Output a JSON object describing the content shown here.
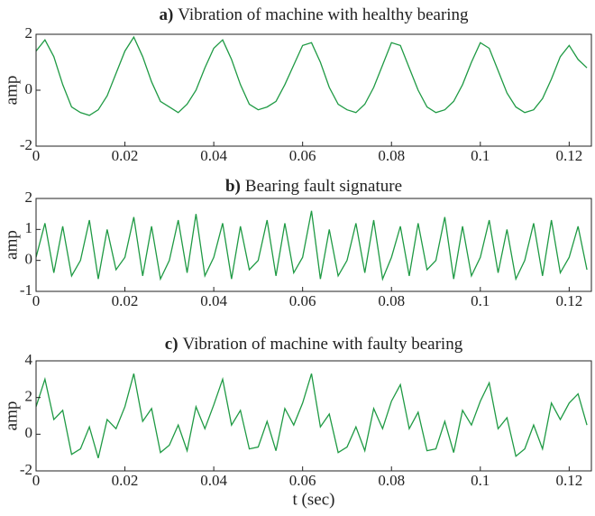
{
  "chart_data": [
    {
      "type": "line",
      "panel_label": "a)",
      "title": "Vibration of machine with healthy bearing",
      "ylabel": "amp",
      "color": "#1f9a44",
      "x": [
        0,
        0.002,
        0.004,
        0.006,
        0.008,
        0.01,
        0.012,
        0.014,
        0.016,
        0.018,
        0.02,
        0.022,
        0.024,
        0.026,
        0.028,
        0.03,
        0.032,
        0.034,
        0.036,
        0.038,
        0.04,
        0.042,
        0.044,
        0.046,
        0.048,
        0.05,
        0.052,
        0.054,
        0.056,
        0.058,
        0.06,
        0.062,
        0.064,
        0.066,
        0.068,
        0.07,
        0.072,
        0.074,
        0.076,
        0.078,
        0.08,
        0.082,
        0.084,
        0.086,
        0.088,
        0.09,
        0.092,
        0.094,
        0.096,
        0.098,
        0.1,
        0.102,
        0.104,
        0.106,
        0.108,
        0.11,
        0.112,
        0.114,
        0.116,
        0.118,
        0.12,
        0.122,
        0.124
      ],
      "values": [
        1.4,
        1.8,
        1.2,
        0.2,
        -0.6,
        -0.8,
        -0.9,
        -0.7,
        -0.2,
        0.6,
        1.4,
        1.9,
        1.2,
        0.3,
        -0.4,
        -0.6,
        -0.8,
        -0.5,
        0.0,
        0.8,
        1.5,
        1.8,
        1.1,
        0.2,
        -0.5,
        -0.7,
        -0.6,
        -0.4,
        0.2,
        0.9,
        1.6,
        1.7,
        1.0,
        0.1,
        -0.5,
        -0.7,
        -0.8,
        -0.5,
        0.1,
        0.9,
        1.7,
        1.6,
        0.8,
        0.0,
        -0.6,
        -0.8,
        -0.7,
        -0.4,
        0.2,
        1.0,
        1.7,
        1.5,
        0.7,
        -0.1,
        -0.6,
        -0.8,
        -0.7,
        -0.3,
        0.4,
        1.2,
        1.6,
        1.1,
        0.8
      ],
      "xlim": [
        0,
        0.125
      ],
      "xticks": [
        0,
        0.02,
        0.04,
        0.06,
        0.08,
        0.1,
        0.12
      ],
      "ylim": [
        -2,
        2
      ],
      "yticks": [
        -2,
        0,
        2
      ]
    },
    {
      "type": "line",
      "panel_label": "b)",
      "title": "Bearing fault signature",
      "ylabel": "amp",
      "color": "#1f9a44",
      "x": [
        0,
        0.002,
        0.004,
        0.006,
        0.008,
        0.01,
        0.012,
        0.014,
        0.016,
        0.018,
        0.02,
        0.022,
        0.024,
        0.026,
        0.028,
        0.03,
        0.032,
        0.034,
        0.036,
        0.038,
        0.04,
        0.042,
        0.044,
        0.046,
        0.048,
        0.05,
        0.052,
        0.054,
        0.056,
        0.058,
        0.06,
        0.062,
        0.064,
        0.066,
        0.068,
        0.07,
        0.072,
        0.074,
        0.076,
        0.078,
        0.08,
        0.082,
        0.084,
        0.086,
        0.088,
        0.09,
        0.092,
        0.094,
        0.096,
        0.098,
        0.1,
        0.102,
        0.104,
        0.106,
        0.108,
        0.11,
        0.112,
        0.114,
        0.116,
        0.118,
        0.12,
        0.122,
        0.124
      ],
      "values": [
        0.1,
        1.2,
        -0.4,
        1.1,
        -0.5,
        0.0,
        1.3,
        -0.6,
        1.0,
        -0.3,
        0.1,
        1.4,
        -0.5,
        1.1,
        -0.6,
        0.0,
        1.3,
        -0.4,
        1.5,
        -0.5,
        0.1,
        1.2,
        -0.6,
        1.1,
        -0.3,
        0.0,
        1.3,
        -0.5,
        1.2,
        -0.4,
        0.1,
        1.6,
        -0.6,
        1.0,
        -0.5,
        0.0,
        1.2,
        -0.4,
        1.3,
        -0.6,
        0.1,
        1.1,
        -0.5,
        1.2,
        -0.3,
        0.0,
        1.4,
        -0.6,
        1.1,
        -0.5,
        0.1,
        1.3,
        -0.4,
        1.0,
        -0.6,
        0.0,
        1.2,
        -0.5,
        1.3,
        -0.4,
        0.1,
        1.1,
        -0.3
      ],
      "xlim": [
        0,
        0.125
      ],
      "xticks": [
        0,
        0.02,
        0.04,
        0.06,
        0.08,
        0.1,
        0.12
      ],
      "ylim": [
        -1,
        2
      ],
      "yticks": [
        -1,
        0,
        1,
        2
      ]
    },
    {
      "type": "line",
      "panel_label": "c)",
      "title": "Vibration of machine with faulty bearing",
      "ylabel": "amp",
      "xlabel": "t (sec)",
      "color": "#1f9a44",
      "x": [
        0,
        0.002,
        0.004,
        0.006,
        0.008,
        0.01,
        0.012,
        0.014,
        0.016,
        0.018,
        0.02,
        0.022,
        0.024,
        0.026,
        0.028,
        0.03,
        0.032,
        0.034,
        0.036,
        0.038,
        0.04,
        0.042,
        0.044,
        0.046,
        0.048,
        0.05,
        0.052,
        0.054,
        0.056,
        0.058,
        0.06,
        0.062,
        0.064,
        0.066,
        0.068,
        0.07,
        0.072,
        0.074,
        0.076,
        0.078,
        0.08,
        0.082,
        0.084,
        0.086,
        0.088,
        0.09,
        0.092,
        0.094,
        0.096,
        0.098,
        0.1,
        0.102,
        0.104,
        0.106,
        0.108,
        0.11,
        0.112,
        0.114,
        0.116,
        0.118,
        0.12,
        0.122,
        0.124
      ],
      "values": [
        1.5,
        3.0,
        0.8,
        1.3,
        -1.1,
        -0.8,
        0.4,
        -1.3,
        0.8,
        0.3,
        1.5,
        3.3,
        0.7,
        1.4,
        -1.0,
        -0.6,
        0.5,
        -0.9,
        1.5,
        0.3,
        1.6,
        3.0,
        0.5,
        1.3,
        -0.8,
        -0.7,
        0.7,
        -0.9,
        1.4,
        0.5,
        1.7,
        3.3,
        0.4,
        1.1,
        -1.0,
        -0.7,
        0.4,
        -0.9,
        1.4,
        0.3,
        1.8,
        2.7,
        0.3,
        1.2,
        -0.9,
        -0.8,
        0.7,
        -1.0,
        1.3,
        0.5,
        1.8,
        2.8,
        0.3,
        0.9,
        -1.2,
        -0.8,
        0.5,
        -0.8,
        1.7,
        0.8,
        1.7,
        2.2,
        0.5
      ],
      "xlim": [
        0,
        0.125
      ],
      "xticks": [
        0,
        0.02,
        0.04,
        0.06,
        0.08,
        0.1,
        0.12
      ],
      "ylim": [
        -2,
        4
      ],
      "yticks": [
        -2,
        0,
        2,
        4
      ]
    }
  ]
}
